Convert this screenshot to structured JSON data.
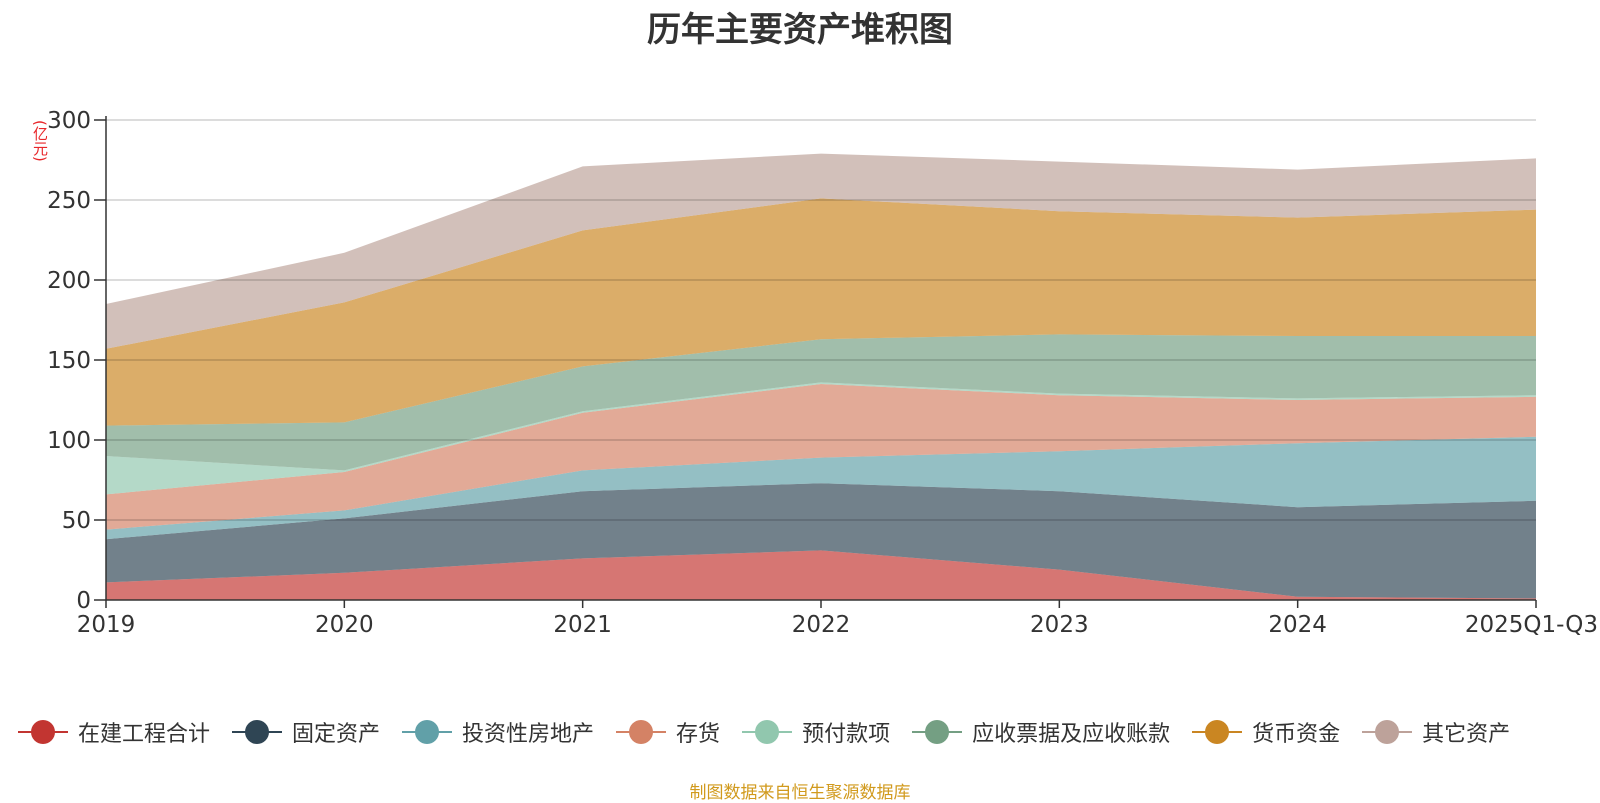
{
  "chart_data": {
    "type": "area",
    "stacked": true,
    "title": "历年主要资产堆积图",
    "ylabel": "(亿元)",
    "ylim": [
      0,
      300
    ],
    "yticks": [
      0,
      50,
      100,
      150,
      200,
      250,
      300
    ],
    "categories": [
      "2019",
      "2020",
      "2021",
      "2022",
      "2023",
      "2024",
      "2025Q1-Q3"
    ],
    "series": [
      {
        "name": "在建工程合计",
        "color": "#c23531",
        "values": [
          11,
          17,
          26,
          31,
          19,
          2,
          1
        ]
      },
      {
        "name": "固定资产",
        "color": "#2f4554",
        "values": [
          27,
          34,
          42,
          42,
          49,
          56,
          61
        ]
      },
      {
        "name": "投资性房地产",
        "color": "#61a0a8",
        "values": [
          6,
          5,
          13,
          16,
          25,
          40,
          40
        ]
      },
      {
        "name": "存货",
        "color": "#d48265",
        "values": [
          22,
          24,
          36,
          46,
          35,
          27,
          25
        ]
      },
      {
        "name": "预付款项",
        "color": "#91c7ae",
        "values": [
          24,
          1,
          1,
          1,
          1,
          1,
          1
        ]
      },
      {
        "name": "应收票据及应收账款",
        "color": "#749f83",
        "values": [
          19,
          30,
          28,
          27,
          37,
          39,
          37
        ]
      },
      {
        "name": "货币资金",
        "color": "#ca8622",
        "values": [
          48,
          75,
          85,
          88,
          77,
          74,
          79
        ]
      },
      {
        "name": "其它资产",
        "color": "#bda29a",
        "values": [
          28,
          31,
          40,
          28,
          31,
          30,
          32
        ]
      }
    ]
  },
  "footer": {
    "source": "制图数据来自恒生聚源数据库"
  }
}
